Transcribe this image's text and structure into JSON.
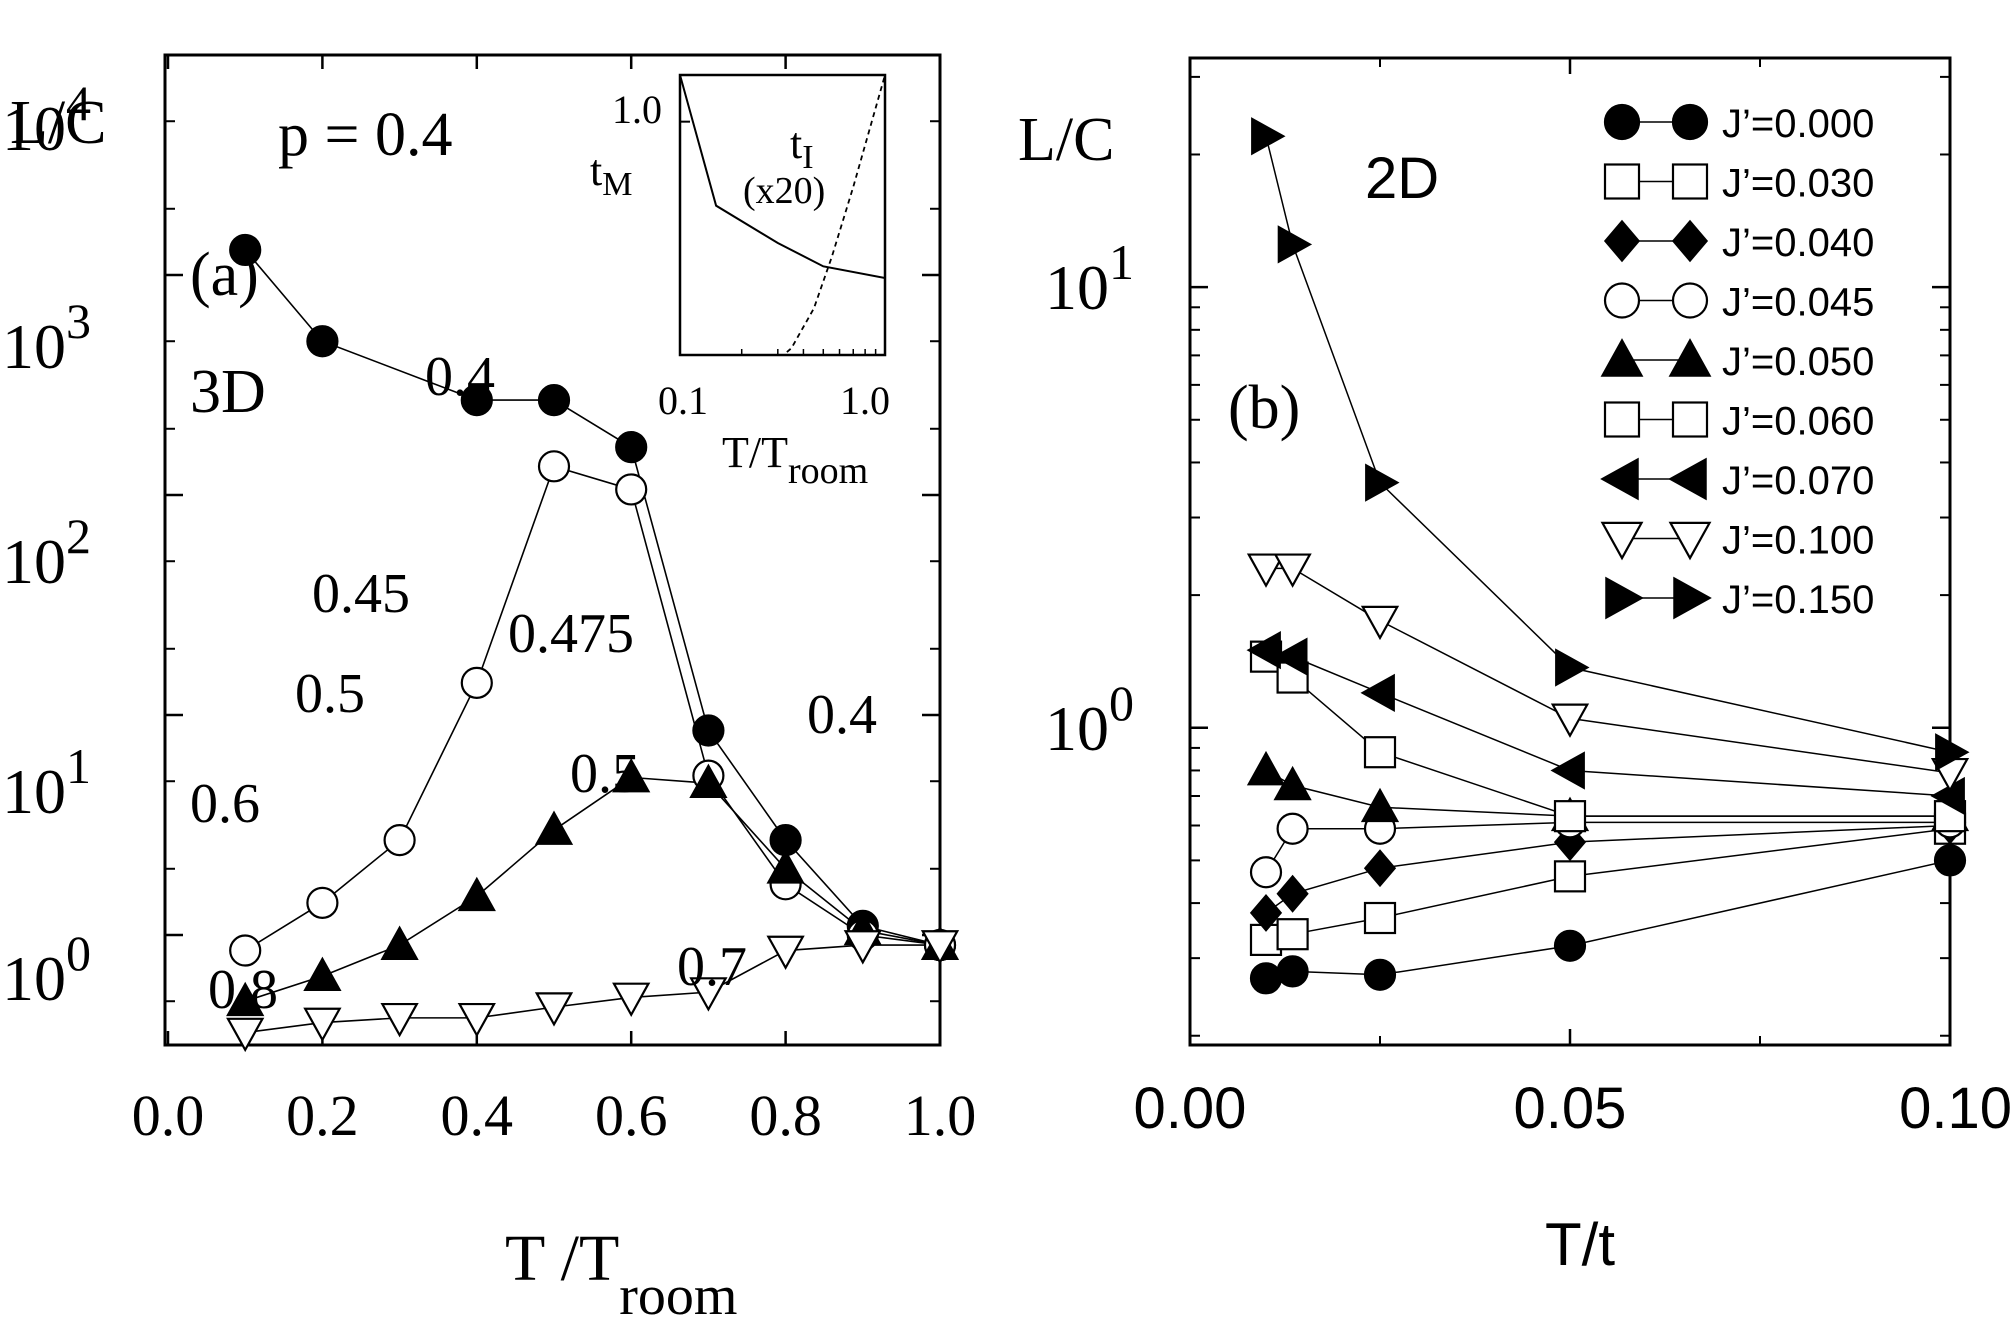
{
  "chart_data": [
    {
      "type": "line",
      "panel_label": "(a)",
      "dimension_label": "3D",
      "ylabel": "L/C",
      "xlabel_main": "T /T",
      "xlabel_sub": "room",
      "p_label": "p = 0.4",
      "yscale": "log",
      "xlim": [
        0.0,
        1.0
      ],
      "ylim_log10": [
        -0.5,
        4.0
      ],
      "x_ticks": [
        "0.0",
        "0.2",
        "0.4",
        "0.6",
        "0.8",
        "1.0"
      ],
      "y_ticks": [
        {
          "base": "10",
          "exp": "0"
        },
        {
          "base": "10",
          "exp": "1"
        },
        {
          "base": "10",
          "exp": "2"
        },
        {
          "base": "10",
          "exp": "3"
        },
        {
          "base": "10",
          "exp": "4"
        }
      ],
      "series": [
        {
          "marker": "filled-circle",
          "x": [
            0.1,
            0.2,
            0.4,
            0.5,
            0.6,
            0.7,
            0.8,
            0.9,
            1.0
          ],
          "y": [
            1300,
            500,
            270,
            270,
            165,
            8.5,
            2.7,
            1.1,
            0.9
          ]
        },
        {
          "marker": "open-circle",
          "x": [
            0.1,
            0.2,
            0.3,
            0.4,
            0.5,
            0.6,
            0.7,
            0.8,
            0.9,
            1.0
          ],
          "y": [
            0.85,
            1.4,
            2.7,
            14,
            135,
            106,
            5.3,
            1.7,
            1.0,
            0.9
          ]
        },
        {
          "marker": "filled-triangle-up",
          "x": [
            0.1,
            0.2,
            0.3,
            0.4,
            0.5,
            0.6,
            0.7,
            0.8,
            0.9,
            1.0
          ],
          "y": [
            0.5,
            0.65,
            0.9,
            1.5,
            3.0,
            5.2,
            4.9,
            2.0,
            1.05,
            0.9
          ]
        },
        {
          "marker": "open-triangle-down",
          "x": [
            0.1,
            0.2,
            0.3,
            0.4,
            0.5,
            0.6,
            0.7,
            0.8,
            0.9,
            1.0
          ],
          "y": [
            0.36,
            0.4,
            0.42,
            0.42,
            0.47,
            0.52,
            0.55,
            0.85,
            0.9,
            0.9
          ]
        }
      ],
      "annotations": [
        "0.4",
        "0.45",
        "0.5",
        "0.6",
        "0.475",
        "0.5",
        "0.4",
        "0.8",
        "0.7"
      ],
      "inset": {
        "x_ticks": [
          "0.1",
          "1.0"
        ],
        "y_tick": "1.0",
        "label_M_main": "t",
        "label_M_sub": "M",
        "label_I_main": "t",
        "label_I_sub": "I",
        "label_I_scale": "(x20)",
        "xlabel_main": "T/T",
        "xlabel_sub": "room",
        "xscale": "log",
        "xlim": [
          0.1,
          1.0
        ],
        "ylim": [
          0.0,
          1.2
        ],
        "tM": {
          "x": [
            0.1,
            0.15,
            0.3,
            0.5,
            1.0
          ],
          "y": [
            1.2,
            0.64,
            0.48,
            0.38,
            0.33
          ]
        },
        "tI": {
          "x": [
            0.1,
            0.25,
            0.32,
            0.35,
            0.45,
            0.55,
            0.7,
            1.0
          ],
          "y": [
            0.0,
            0.0,
            0.0,
            0.03,
            0.2,
            0.42,
            0.72,
            1.2
          ]
        }
      }
    },
    {
      "type": "line",
      "panel_label": "(b)",
      "dimension_label": "2D",
      "ylabel": "L/C",
      "xlabel": "T/t",
      "yscale": "log",
      "xlim": [
        0.0,
        0.1
      ],
      "ylim_log10": [
        -0.72,
        1.52
      ],
      "x_ticks": [
        "0.00",
        "0.05",
        "0.10"
      ],
      "y_ticks": [
        {
          "base": "10",
          "exp": "0"
        },
        {
          "base": "10",
          "exp": "1"
        }
      ],
      "x": [
        0.01,
        0.0135,
        0.025,
        0.05,
        0.1
      ],
      "series": [
        {
          "name": "J’=0.000",
          "marker": "filled-circle",
          "y": [
            0.27,
            0.28,
            0.275,
            0.32,
            0.5
          ]
        },
        {
          "name": "J’=0.030",
          "marker": "open-square",
          "y": [
            0.33,
            0.34,
            0.37,
            0.46,
            0.59
          ]
        },
        {
          "name": "J’=0.040",
          "marker": "filled-diamond",
          "y": [
            0.38,
            0.42,
            0.48,
            0.55,
            0.6
          ]
        },
        {
          "name": "J’=0.045",
          "marker": "open-circle",
          "y": [
            0.47,
            0.59,
            0.59,
            0.61,
            0.61
          ]
        },
        {
          "name": "J’=0.050",
          "marker": "filled-triangle-up",
          "y": [
            0.8,
            0.74,
            0.66,
            0.63,
            0.63
          ]
        },
        {
          "name": "J’=0.060",
          "marker": "open-square",
          "y": [
            1.45,
            1.3,
            0.88,
            0.63,
            0.63
          ]
        },
        {
          "name": "J’=0.070",
          "marker": "filled-triangle-left",
          "y": [
            1.5,
            1.45,
            1.2,
            0.8,
            0.7
          ]
        },
        {
          "name": "J’=0.100",
          "marker": "open-triangle-down",
          "y": [
            2.3,
            2.3,
            1.75,
            1.05,
            0.79
          ]
        },
        {
          "name": "J’=0.150",
          "marker": "filled-triangle-right",
          "y": [
            22,
            12.5,
            3.6,
            1.37,
            0.88
          ]
        }
      ]
    }
  ]
}
